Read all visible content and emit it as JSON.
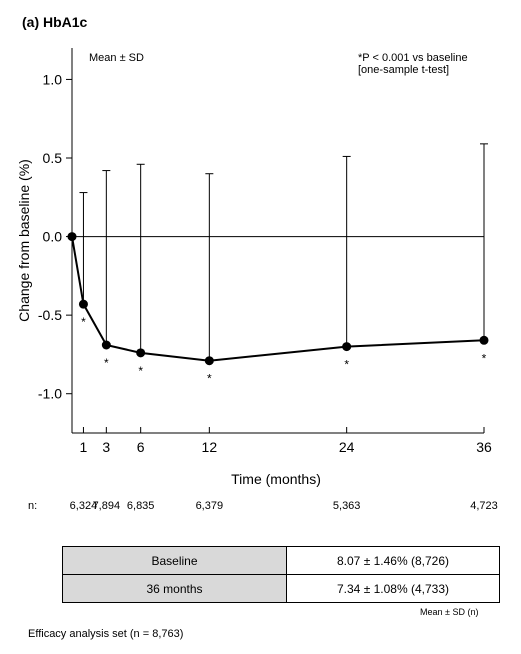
{
  "title": "(a) HbA1c",
  "chart_data": {
    "type": "line",
    "xlabel": "Time (months)",
    "ylabel": "Change from baseline (%)",
    "ylim": [
      -1.25,
      1.2
    ],
    "xlim": [
      0,
      36
    ],
    "x_ticks": [
      1,
      3,
      6,
      12,
      24,
      36
    ],
    "y_ticks": [
      1.0,
      0.5,
      0.0,
      -0.5,
      -1.0
    ],
    "y_tick_labels": [
      "1.0",
      "0.5",
      "0.0",
      "-0.5",
      "-1.0"
    ],
    "reference_line_y": 0,
    "legend_left": "Mean ± SD",
    "annotation_lines": [
      "*P < 0.001 vs baseline",
      "[one-sample t-test]"
    ],
    "significance_marker": "*",
    "series": [
      {
        "x": [
          0,
          1,
          3,
          6,
          12,
          24,
          36
        ],
        "mean": [
          0.0,
          -0.43,
          -0.69,
          -0.74,
          -0.79,
          -0.7,
          -0.66
        ],
        "upper": [
          0.0,
          0.28,
          0.42,
          0.46,
          0.4,
          0.51,
          0.59
        ],
        "significant": [
          false,
          true,
          true,
          true,
          true,
          true,
          true
        ]
      }
    ]
  },
  "n_row": {
    "label": "n:",
    "values": [
      {
        "x": 1,
        "text": "6,324"
      },
      {
        "x": 3,
        "text": "7,894"
      },
      {
        "x": 6,
        "text": "6,835"
      },
      {
        "x": 12,
        "text": "6,379"
      },
      {
        "x": 24,
        "text": "5,363"
      },
      {
        "x": 36,
        "text": "4,723"
      }
    ]
  },
  "summary_table": {
    "rows": [
      {
        "label": "Baseline",
        "value": "8.07 ± 1.46% (8,726)"
      },
      {
        "label": "36 months",
        "value": "7.34 ± 1.08% (4,733)"
      }
    ],
    "footnote": "Mean ± SD (n)"
  },
  "footer": "Efficacy analysis set (n = 8,763)"
}
